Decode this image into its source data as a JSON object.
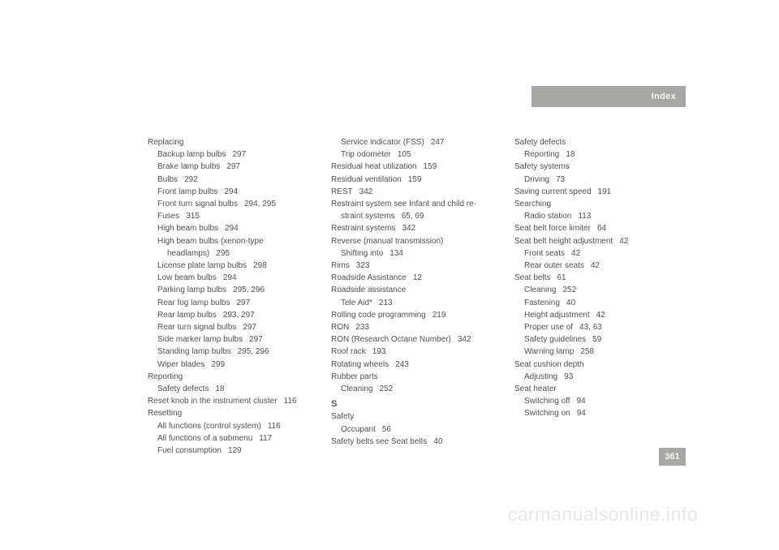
{
  "header": {
    "title": "Index"
  },
  "page_number": "361",
  "watermark": "carmanualsonline.info",
  "col1": [
    {
      "t": "Replacing",
      "cls": ""
    },
    {
      "t": "Backup lamp bulbs",
      "p": "297",
      "cls": "sub"
    },
    {
      "t": "Brake lamp bulbs",
      "p": "297",
      "cls": "sub"
    },
    {
      "t": "Bulbs",
      "p": "292",
      "cls": "sub"
    },
    {
      "t": "Front lamp bulbs",
      "p": "294",
      "cls": "sub"
    },
    {
      "t": "Front turn signal bulbs",
      "p": "294, 295",
      "cls": "sub"
    },
    {
      "t": "Fuses",
      "p": "315",
      "cls": "sub"
    },
    {
      "t": "High beam bulbs",
      "p": "294",
      "cls": "sub"
    },
    {
      "t": "High beam bulbs (xenon-type",
      "cls": "sub"
    },
    {
      "t": "headlamps)",
      "p": "295",
      "cls": "sub2"
    },
    {
      "t": "License plate lamp bulbs",
      "p": "298",
      "cls": "sub"
    },
    {
      "t": "Low beam bulbs",
      "p": "294",
      "cls": "sub"
    },
    {
      "t": "Parking lamp bulbs",
      "p": "295, 296",
      "cls": "sub"
    },
    {
      "t": "Rear fog lamp bulbs",
      "p": "297",
      "cls": "sub"
    },
    {
      "t": "Rear lamp bulbs",
      "p": "293, 297",
      "cls": "sub"
    },
    {
      "t": "Rear turn signal bulbs",
      "p": "297",
      "cls": "sub"
    },
    {
      "t": "Side marker lamp bulbs",
      "p": "297",
      "cls": "sub"
    },
    {
      "t": "Standing lamp bulbs",
      "p": "295, 296",
      "cls": "sub"
    },
    {
      "t": "Wiper blades",
      "p": "299",
      "cls": "sub"
    },
    {
      "t": "Reporting",
      "cls": ""
    },
    {
      "t": "Safety defects",
      "p": "18",
      "cls": "sub"
    },
    {
      "t": "Reset knob in the instrument cluster",
      "p": "116",
      "cls": ""
    },
    {
      "t": "Resetting",
      "cls": ""
    },
    {
      "t": "All functions (control system)",
      "p": "116",
      "cls": "sub"
    },
    {
      "t": "All functions of a submenu",
      "p": "117",
      "cls": "sub"
    },
    {
      "t": "Fuel consumption",
      "p": "129",
      "cls": "sub"
    }
  ],
  "col2": [
    {
      "t": "Service indicator (FSS)",
      "p": "247",
      "cls": "sub"
    },
    {
      "t": "Trip odometer",
      "p": "105",
      "cls": "sub"
    },
    {
      "t": "Residual heat utilization",
      "p": "159",
      "cls": ""
    },
    {
      "t": "Residual ventilation",
      "p": "159",
      "cls": ""
    },
    {
      "t": "REST",
      "p": "342",
      "cls": ""
    },
    {
      "t": "Restraint system see Infant and child re-",
      "cls": ""
    },
    {
      "t": "straint systems",
      "p": "65, 69",
      "cls": "sub"
    },
    {
      "t": "Restraint systems",
      "p": "342",
      "cls": ""
    },
    {
      "t": "Reverse (manual transmission)",
      "cls": ""
    },
    {
      "t": "Shifting into",
      "p": "134",
      "cls": "sub"
    },
    {
      "t": "Rims",
      "p": "323",
      "cls": ""
    },
    {
      "t": "Roadside Assistance",
      "p": "12",
      "cls": ""
    },
    {
      "t": "Roadside assistance",
      "cls": ""
    },
    {
      "t": "Tele Aid*",
      "p": "213",
      "cls": "sub"
    },
    {
      "t": "Rolling code programming",
      "p": "219",
      "cls": ""
    },
    {
      "t": "RON",
      "p": "233",
      "cls": ""
    },
    {
      "t": "RON (Research Octane Number)",
      "p": "342",
      "cls": ""
    },
    {
      "t": "Roof rack",
      "p": "193",
      "cls": ""
    },
    {
      "t": "Rotating wheels",
      "p": "243",
      "cls": ""
    },
    {
      "t": "Rubber parts",
      "cls": ""
    },
    {
      "t": "Cleaning",
      "p": "252",
      "cls": "sub"
    },
    {
      "t": "S",
      "cls": "section-letter"
    },
    {
      "t": "Safety",
      "cls": ""
    },
    {
      "t": "Occupant",
      "p": "56",
      "cls": "sub"
    },
    {
      "t": "Safety belts see Seat belts",
      "p": "40",
      "cls": ""
    }
  ],
  "col3": [
    {
      "t": "Safety defects",
      "cls": ""
    },
    {
      "t": "Reporting",
      "p": "18",
      "cls": "sub"
    },
    {
      "t": "Safety systems",
      "cls": ""
    },
    {
      "t": "Driving",
      "p": "73",
      "cls": "sub"
    },
    {
      "t": "Saving current speed",
      "p": "191",
      "cls": ""
    },
    {
      "t": "Searching",
      "cls": ""
    },
    {
      "t": "Radio station",
      "p": "113",
      "cls": "sub"
    },
    {
      "t": "Seat belt force limiter",
      "p": "64",
      "cls": ""
    },
    {
      "t": "Seat belt height adjustment",
      "p": "42",
      "cls": ""
    },
    {
      "t": "Front seats",
      "p": "42",
      "cls": "sub"
    },
    {
      "t": "Rear outer seats",
      "p": "42",
      "cls": "sub"
    },
    {
      "t": "Seat belts",
      "p": "61",
      "cls": ""
    },
    {
      "t": "Cleaning",
      "p": "252",
      "cls": "sub"
    },
    {
      "t": "Fastening",
      "p": "40",
      "cls": "sub"
    },
    {
      "t": "Height adjustment",
      "p": "42",
      "cls": "sub"
    },
    {
      "t": "Proper use of",
      "p": "43, 63",
      "cls": "sub"
    },
    {
      "t": "Safety guidelines",
      "p": "59",
      "cls": "sub"
    },
    {
      "t": "Warning lamp",
      "p": "258",
      "cls": "sub"
    },
    {
      "t": "Seat cushion depth",
      "cls": ""
    },
    {
      "t": "Adjusting",
      "p": "93",
      "cls": "sub"
    },
    {
      "t": "Seat heater",
      "cls": ""
    },
    {
      "t": "Switching off",
      "p": "94",
      "cls": "sub"
    },
    {
      "t": "Switching on",
      "p": "94",
      "cls": "sub"
    }
  ]
}
